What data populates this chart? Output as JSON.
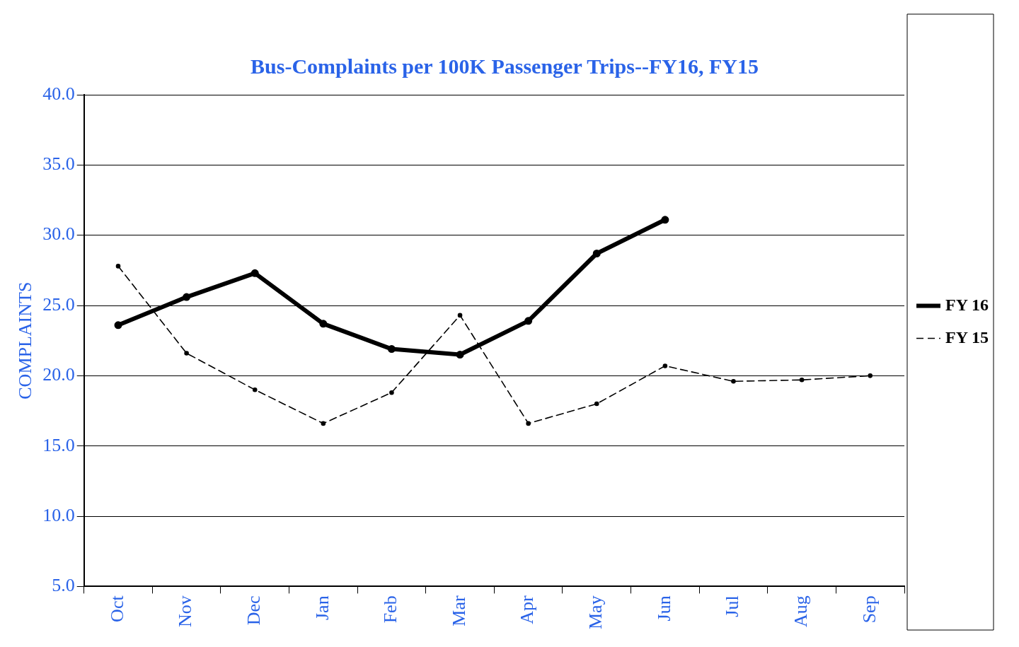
{
  "chart_data": {
    "type": "line",
    "title": "Bus-Complaints per 100K Passenger Trips--FY16, FY15",
    "ylabel": "COMPLAINTS",
    "categories": [
      "Oct",
      "Nov",
      "Dec",
      "Jan",
      "Feb",
      "Mar",
      "Apr",
      "May",
      "Jun",
      "Jul",
      "Aug",
      "Sep"
    ],
    "series": [
      {
        "name": "FY 16",
        "color": "#000000",
        "line_style": "solid",
        "values": [
          23.6,
          25.6,
          27.3,
          23.7,
          21.9,
          21.5,
          23.9,
          28.7,
          31.1,
          null,
          null,
          null
        ]
      },
      {
        "name": "FY 15",
        "color": "#000000",
        "line_style": "dashed",
        "values": [
          27.8,
          21.6,
          19.0,
          16.6,
          18.8,
          24.3,
          16.6,
          18.0,
          20.7,
          19.6,
          19.7,
          20.0
        ]
      }
    ],
    "ylim": [
      5,
      40
    ],
    "yticks": [
      {
        "value": 5,
        "label": "5.0"
      },
      {
        "value": 10,
        "label": "10.0"
      },
      {
        "value": 15,
        "label": "15.0"
      },
      {
        "value": 20,
        "label": "20.0"
      },
      {
        "value": 25,
        "label": "25.0"
      },
      {
        "value": 30,
        "label": "30.0"
      },
      {
        "value": 35,
        "label": "35.0"
      },
      {
        "value": 40,
        "label": "40.0"
      }
    ],
    "grid": "y",
    "legend": "right",
    "marker": "circle"
  }
}
